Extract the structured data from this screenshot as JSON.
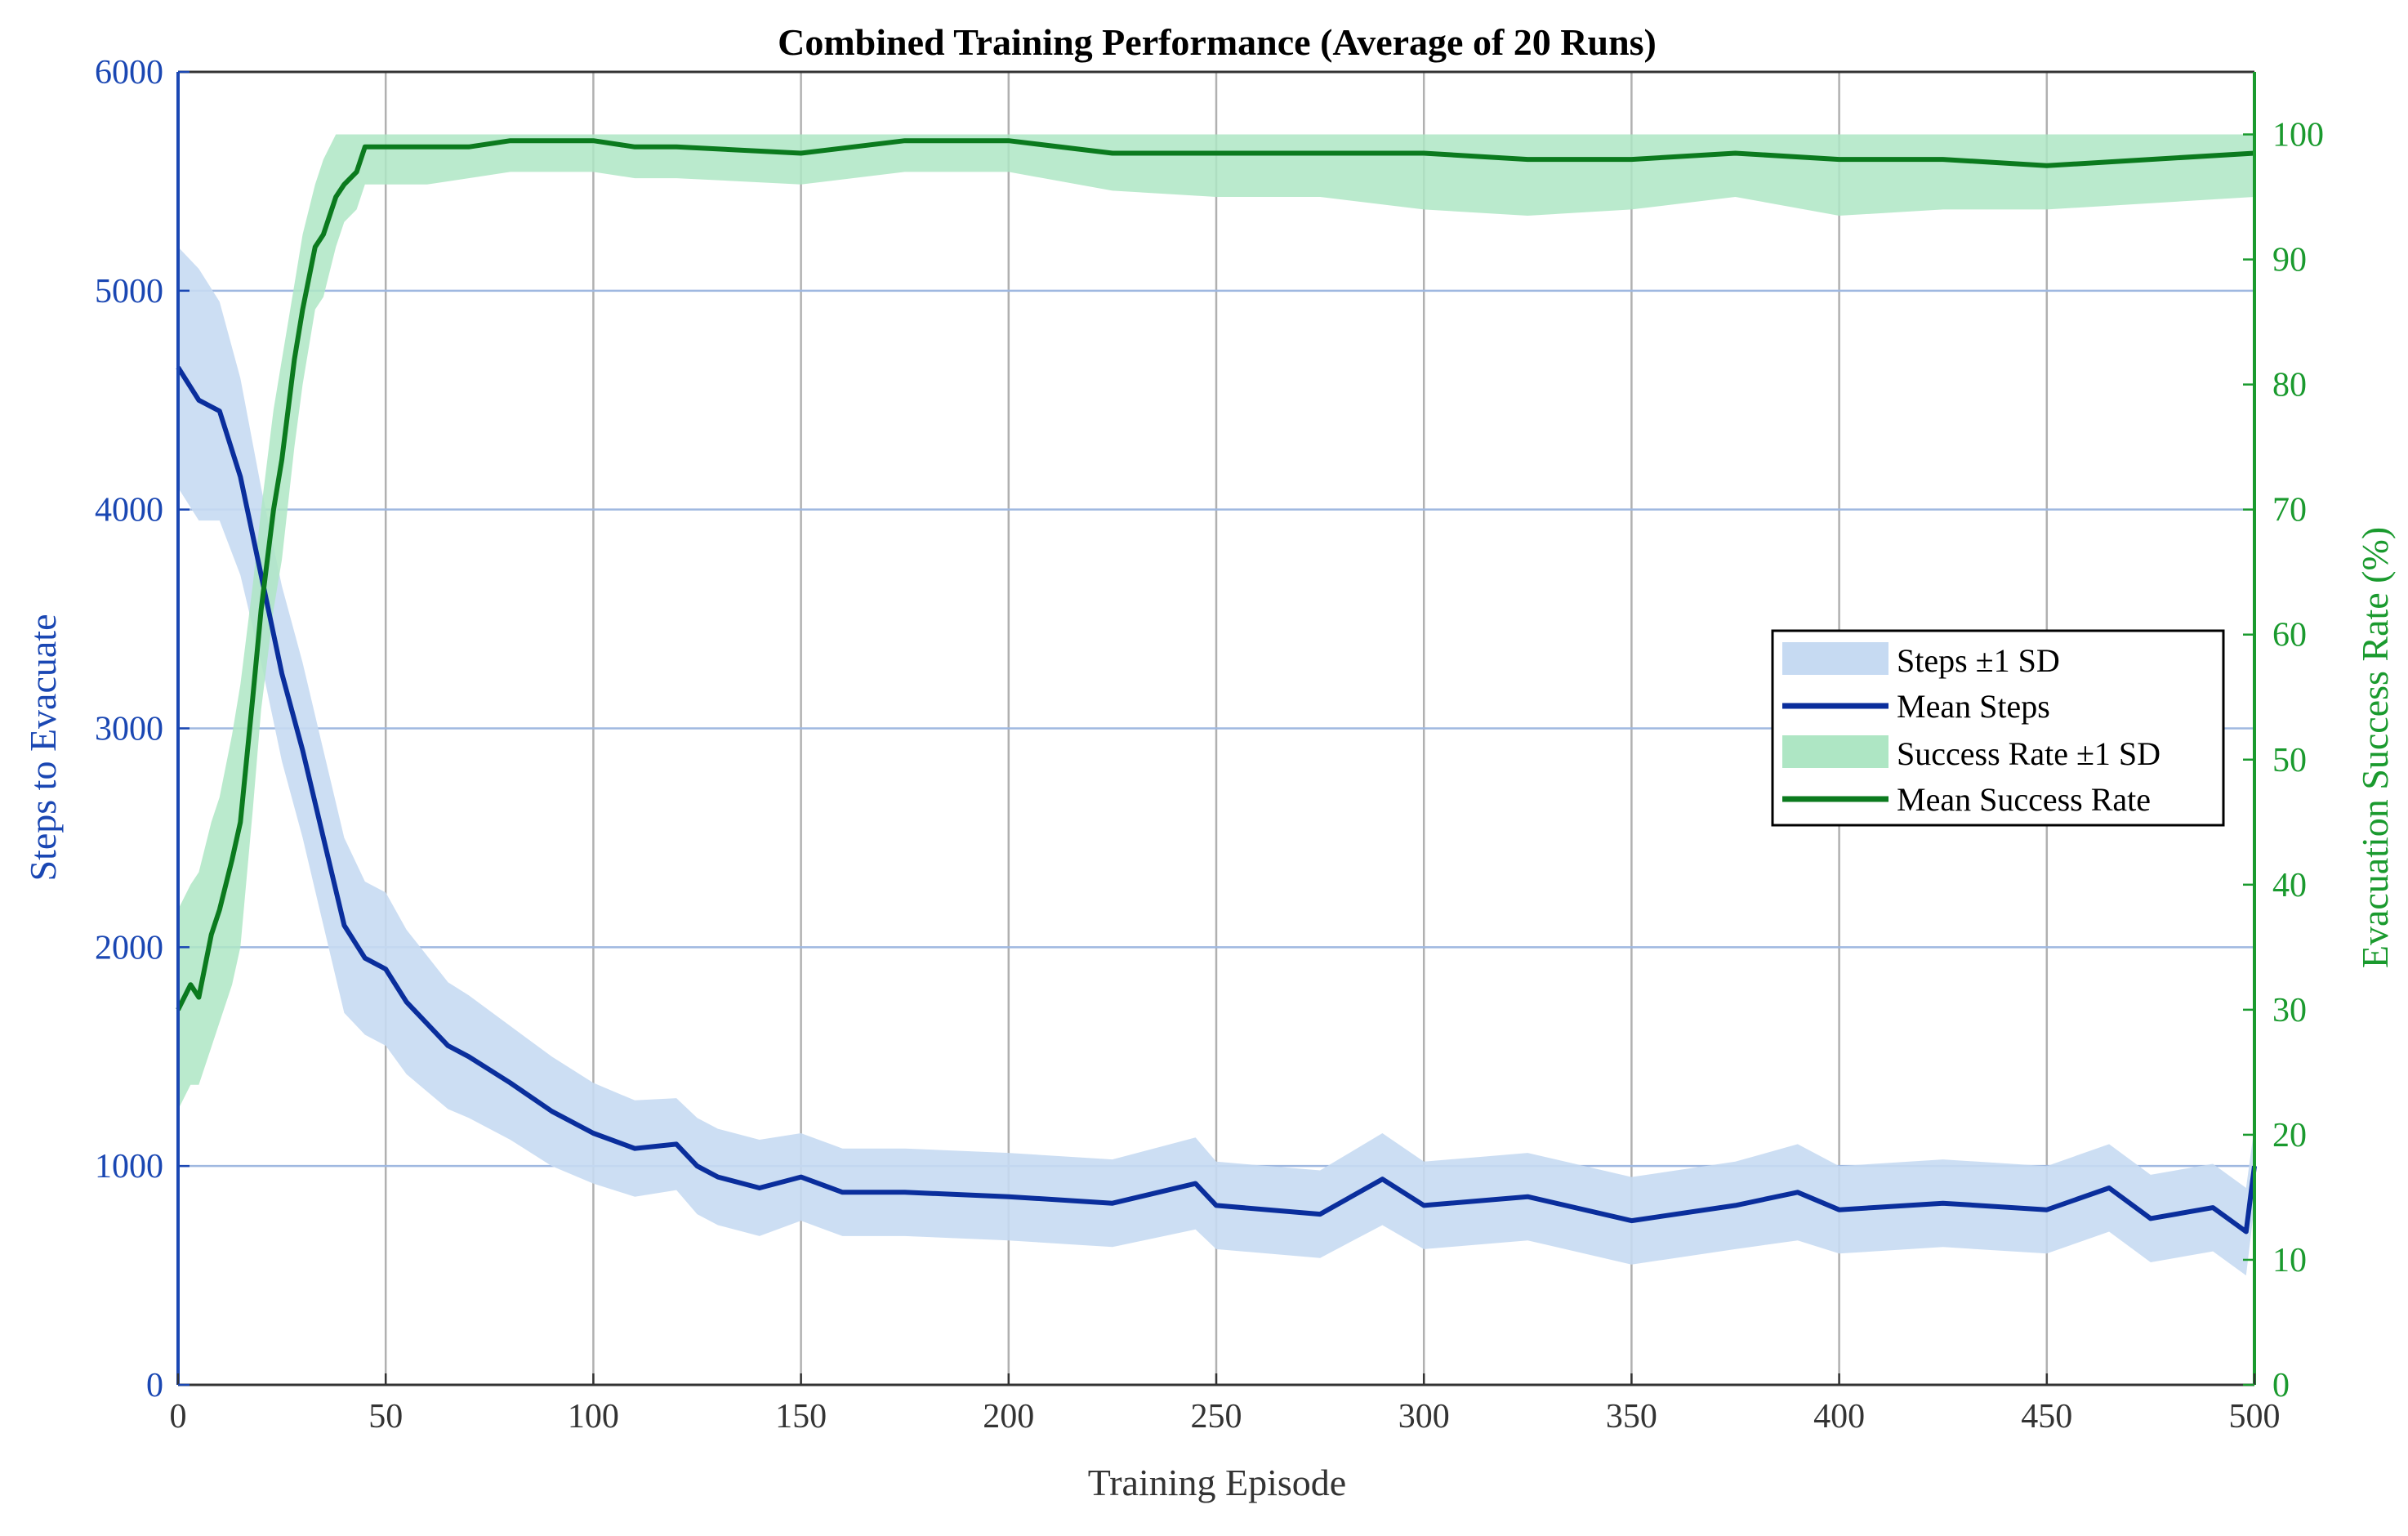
{
  "chart_data": {
    "type": "line",
    "title": "Combined Training Performance (Average of 20 Runs)",
    "xlabel": "Training Episode",
    "ylabel_left": "Steps to Evacuate",
    "ylabel_right": "Evacuation Success Rate (%)",
    "xlim": [
      0,
      500
    ],
    "ylim_left": [
      0,
      6000
    ],
    "ylim_right": [
      0,
      105
    ],
    "x_ticks": [
      0,
      50,
      100,
      150,
      200,
      250,
      300,
      350,
      400,
      450,
      500
    ],
    "y_left_ticks": [
      0,
      1000,
      2000,
      3000,
      4000,
      5000,
      6000
    ],
    "y_right_ticks": [
      0,
      10,
      20,
      30,
      40,
      50,
      60,
      70,
      80,
      90,
      100
    ],
    "grid": true,
    "legend_position": "center-right",
    "colors": {
      "steps": "#0a2e9c",
      "steps_band": "#c6daf2",
      "success": "#0b7a1e",
      "success_band": "#aee6c4",
      "left_axis": "#1a47b3",
      "right_axis": "#1a9a2e",
      "grid_v": "#b0b0b0",
      "grid_h": "#9fb8e0"
    },
    "legend": [
      "Steps ±1 SD",
      "Mean Steps",
      "Success Rate ±1 SD",
      "Mean Success Rate"
    ],
    "series": [
      {
        "name": "Mean Steps",
        "axis": "left",
        "x": [
          0,
          5,
          10,
          15,
          20,
          25,
          30,
          35,
          40,
          45,
          50,
          55,
          60,
          65,
          70,
          80,
          90,
          100,
          110,
          120,
          125,
          130,
          140,
          150,
          160,
          175,
          200,
          225,
          245,
          250,
          275,
          290,
          300,
          325,
          350,
          375,
          390,
          400,
          425,
          450,
          465,
          475,
          490,
          498,
          500
        ],
        "y": [
          4650,
          4500,
          4450,
          4150,
          3700,
          3250,
          2900,
          2500,
          2100,
          1950,
          1900,
          1750,
          1650,
          1550,
          1500,
          1380,
          1250,
          1150,
          1080,
          1100,
          1000,
          950,
          900,
          950,
          880,
          880,
          860,
          830,
          920,
          820,
          780,
          940,
          820,
          860,
          750,
          820,
          880,
          800,
          830,
          800,
          900,
          760,
          810,
          700,
          1000
        ]
      },
      {
        "name": "Steps ±1 SD",
        "axis": "left",
        "x": [
          0,
          5,
          10,
          15,
          20,
          25,
          30,
          35,
          40,
          45,
          50,
          55,
          60,
          65,
          70,
          80,
          90,
          100,
          110,
          120,
          125,
          130,
          140,
          150,
          160,
          175,
          200,
          225,
          245,
          250,
          275,
          290,
          300,
          325,
          350,
          375,
          390,
          400,
          425,
          450,
          465,
          475,
          490,
          498,
          500
        ],
        "upper": [
          5200,
          5100,
          4950,
          4600,
          4100,
          3650,
          3300,
          2900,
          2500,
          2300,
          2250,
          2080,
          1960,
          1840,
          1780,
          1640,
          1500,
          1380,
          1300,
          1310,
          1220,
          1170,
          1120,
          1150,
          1080,
          1080,
          1060,
          1030,
          1130,
          1020,
          980,
          1150,
          1020,
          1060,
          950,
          1020,
          1100,
          1000,
          1030,
          1000,
          1100,
          960,
          1010,
          900,
          1180
        ],
        "lower": [
          4100,
          3950,
          3950,
          3700,
          3300,
          2850,
          2500,
          2100,
          1700,
          1600,
          1550,
          1420,
          1340,
          1260,
          1220,
          1120,
          1000,
          920,
          860,
          890,
          780,
          730,
          680,
          750,
          680,
          680,
          660,
          630,
          710,
          620,
          580,
          730,
          620,
          660,
          550,
          620,
          660,
          600,
          630,
          600,
          700,
          560,
          610,
          500,
          820
        ]
      },
      {
        "name": "Mean Success Rate",
        "axis": "right",
        "x": [
          0,
          3,
          5,
          8,
          10,
          13,
          15,
          18,
          20,
          23,
          25,
          28,
          30,
          33,
          35,
          38,
          40,
          43,
          45,
          50,
          55,
          60,
          70,
          80,
          90,
          100,
          110,
          120,
          150,
          175,
          200,
          225,
          250,
          275,
          300,
          325,
          350,
          375,
          400,
          425,
          450,
          475,
          500
        ],
        "y": [
          30,
          32,
          31,
          36,
          38,
          42,
          45,
          55,
          62,
          70,
          74,
          82,
          86,
          91,
          92,
          95,
          96,
          97,
          99,
          99,
          99,
          99,
          99,
          99.5,
          99.5,
          99.5,
          99,
          99,
          98.5,
          99.5,
          99.5,
          98.5,
          98.5,
          98.5,
          98.5,
          98,
          98,
          98.5,
          98,
          98,
          97.5,
          98,
          98.5
        ]
      },
      {
        "name": "Success Rate ±1 SD",
        "axis": "right",
        "x": [
          0,
          3,
          5,
          8,
          10,
          13,
          15,
          18,
          20,
          23,
          25,
          28,
          30,
          33,
          35,
          38,
          40,
          43,
          45,
          50,
          55,
          60,
          70,
          80,
          90,
          100,
          110,
          120,
          150,
          175,
          200,
          225,
          250,
          275,
          300,
          325,
          350,
          375,
          400,
          425,
          450,
          475,
          500
        ],
        "upper": [
          38,
          40,
          41,
          45,
          47,
          52,
          56,
          64,
          70,
          78,
          82,
          88,
          92,
          96,
          98,
          100,
          100,
          100,
          100,
          100,
          100,
          100,
          100,
          100,
          100,
          100,
          100,
          100,
          100,
          100,
          100,
          100,
          100,
          100,
          100,
          100,
          100,
          100,
          100,
          100,
          100,
          100,
          100
        ],
        "lower": [
          22,
          24,
          24,
          27,
          29,
          32,
          35,
          46,
          54,
          62,
          66,
          75,
          80,
          86,
          87,
          91,
          93,
          94,
          96,
          96,
          96,
          96,
          96.5,
          97,
          97,
          97,
          96.5,
          96.5,
          96,
          97,
          97,
          95.5,
          95,
          95,
          94,
          93.5,
          94,
          95,
          93.5,
          94,
          94,
          94.5,
          95
        ]
      }
    ]
  }
}
